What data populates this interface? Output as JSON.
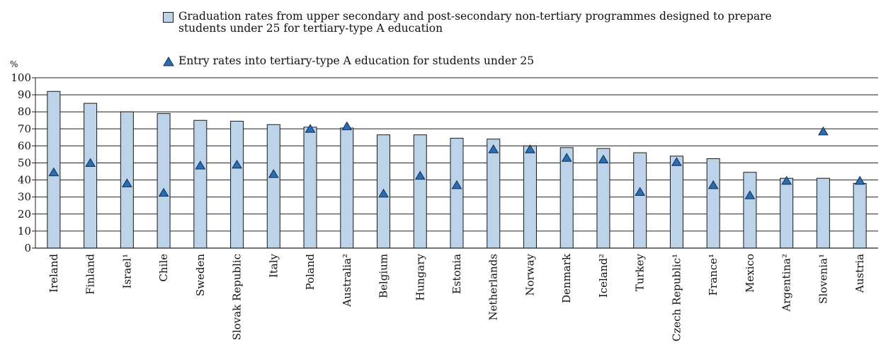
{
  "chart_data": {
    "type": "bar",
    "ylabel": "%",
    "ylim": [
      0,
      100
    ],
    "yticks": [
      0,
      10,
      20,
      30,
      40,
      50,
      60,
      70,
      80,
      90,
      100
    ],
    "grid": true,
    "legend_position": "top",
    "categories": [
      "Ireland",
      "Finland",
      "Israel¹",
      "Chile",
      "Sweden",
      "Slovak Republic",
      "Italy",
      "Poland",
      "Australia²",
      "Belgium",
      "Hungary",
      "Estonia",
      "Netherlands",
      "Norway",
      "Denmark",
      "Iceland²",
      "Turkey",
      "Czech Republic¹",
      "France¹",
      "Mexico",
      "Argentina²",
      "Slovenia¹",
      "Austria"
    ],
    "series": [
      {
        "name": "Graduation rates from upper secondary and post-secondary non-tertiary programmes designed to prepare students under 25 for tertiary-type A education",
        "mark": "bar",
        "color": "#bcd3ea",
        "values": [
          92,
          85,
          80,
          79,
          75,
          74.5,
          72.5,
          71,
          70.5,
          66.5,
          66.5,
          64.5,
          64,
          60,
          59,
          58.5,
          56,
          54,
          52.5,
          44.5,
          41,
          41,
          38
        ]
      },
      {
        "name": "Entry rates into tertiary-type A education for students under 25",
        "mark": "triangle",
        "color": "#2a6db0",
        "values": [
          44.5,
          50,
          38,
          32.5,
          48.5,
          49,
          43.5,
          70,
          71.5,
          32,
          42.5,
          37,
          58,
          58,
          53,
          52,
          33,
          50.5,
          37,
          31,
          39.5,
          68.5,
          39.5
        ]
      }
    ]
  }
}
